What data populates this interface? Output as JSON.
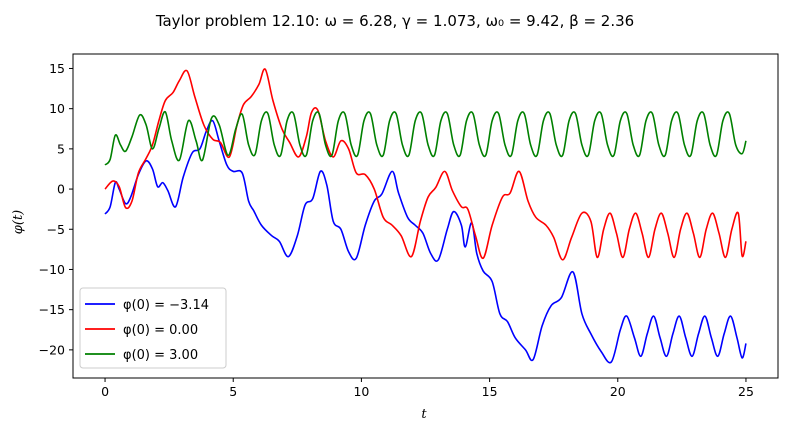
{
  "chart_data": {
    "type": "line",
    "title": "Taylor problem 12.10:   ω = 6.28,  γ = 1.073,  ω₀ = 9.42,  β = 2.36",
    "xlabel": "t",
    "ylabel": "φ(t)",
    "xlim": [
      -1.25,
      26.25
    ],
    "ylim": [
      -23.5,
      16.8
    ],
    "xticks": [
      0,
      5,
      10,
      15,
      20,
      25
    ],
    "yticks": [
      -20,
      -15,
      -10,
      -5,
      0,
      5,
      10,
      15
    ],
    "grid": false,
    "legend_position": "lower-left",
    "series": [
      {
        "name": "φ(0) = −3.14",
        "color": "#0000ff",
        "points": [
          [
            0,
            -3.1
          ],
          [
            0.2,
            -2.2
          ],
          [
            0.4,
            0.8
          ],
          [
            0.55,
            0.0
          ],
          [
            0.8,
            -1.8
          ],
          [
            1.0,
            -1.0
          ],
          [
            1.3,
            1.8
          ],
          [
            1.6,
            3.5
          ],
          [
            1.85,
            2.5
          ],
          [
            2.05,
            0.3
          ],
          [
            2.25,
            0.8
          ],
          [
            2.45,
            -0.2
          ],
          [
            2.75,
            -2.2
          ],
          [
            3.05,
            1.5
          ],
          [
            3.4,
            4.5
          ],
          [
            3.7,
            5.0
          ],
          [
            3.95,
            7.2
          ],
          [
            4.2,
            8.5
          ],
          [
            4.45,
            6.0
          ],
          [
            4.75,
            3.0
          ],
          [
            5.0,
            2.2
          ],
          [
            5.35,
            2.0
          ],
          [
            5.6,
            -1.5
          ],
          [
            5.8,
            -2.7
          ],
          [
            6.1,
            -4.5
          ],
          [
            6.5,
            -5.8
          ],
          [
            6.8,
            -6.5
          ],
          [
            7.15,
            -8.4
          ],
          [
            7.5,
            -5.8
          ],
          [
            7.8,
            -2.0
          ],
          [
            8.1,
            -1.2
          ],
          [
            8.4,
            2.2
          ],
          [
            8.65,
            0.5
          ],
          [
            8.9,
            -4.0
          ],
          [
            9.2,
            -5.0
          ],
          [
            9.5,
            -7.8
          ],
          [
            9.8,
            -8.6
          ],
          [
            10.15,
            -4.5
          ],
          [
            10.5,
            -1.5
          ],
          [
            10.8,
            -0.6
          ],
          [
            11.2,
            2.2
          ],
          [
            11.45,
            -0.5
          ],
          [
            11.8,
            -3.5
          ],
          [
            12.1,
            -4.5
          ],
          [
            12.4,
            -5.5
          ],
          [
            12.7,
            -8.0
          ],
          [
            13.0,
            -8.8
          ],
          [
            13.35,
            -5.0
          ],
          [
            13.6,
            -2.8
          ],
          [
            13.9,
            -4.5
          ],
          [
            14.05,
            -7.2
          ],
          [
            14.3,
            -4.2
          ],
          [
            14.5,
            -8.0
          ],
          [
            14.75,
            -10.2
          ],
          [
            15.1,
            -11.5
          ],
          [
            15.4,
            -15.5
          ],
          [
            15.7,
            -16.5
          ],
          [
            16.0,
            -18.5
          ],
          [
            16.4,
            -20.0
          ],
          [
            16.7,
            -21.2
          ],
          [
            17.05,
            -17.0
          ],
          [
            17.4,
            -14.5
          ],
          [
            17.8,
            -13.5
          ],
          [
            18.25,
            -10.3
          ],
          [
            18.6,
            -15.5
          ],
          [
            18.95,
            -18.0
          ],
          [
            19.35,
            -20.2
          ],
          [
            19.75,
            -21.5
          ],
          [
            20.1,
            -17.5
          ],
          [
            20.35,
            -15.8
          ],
          [
            20.65,
            -18.5
          ],
          [
            20.9,
            -20.8
          ],
          [
            21.15,
            -18.0
          ],
          [
            21.4,
            -15.8
          ],
          [
            21.65,
            -18.5
          ],
          [
            21.9,
            -20.8
          ],
          [
            22.15,
            -18.0
          ],
          [
            22.4,
            -15.8
          ],
          [
            22.65,
            -18.5
          ],
          [
            22.9,
            -20.8
          ],
          [
            23.15,
            -18.0
          ],
          [
            23.4,
            -15.8
          ],
          [
            23.65,
            -18.5
          ],
          [
            23.9,
            -20.8
          ],
          [
            24.15,
            -18.0
          ],
          [
            24.4,
            -15.8
          ],
          [
            24.65,
            -18.5
          ],
          [
            24.85,
            -21.0
          ],
          [
            25.0,
            -19.2
          ]
        ]
      },
      {
        "name": "φ(0) = 0.00",
        "color": "#ff0000",
        "points": [
          [
            0,
            0.0
          ],
          [
            0.3,
            1.0
          ],
          [
            0.55,
            0.3
          ],
          [
            0.8,
            -2.3
          ],
          [
            1.05,
            -1.5
          ],
          [
            1.3,
            2.0
          ],
          [
            1.6,
            3.8
          ],
          [
            1.85,
            5.5
          ],
          [
            2.1,
            8.5
          ],
          [
            2.35,
            11.0
          ],
          [
            2.65,
            12.0
          ],
          [
            2.9,
            13.5
          ],
          [
            3.2,
            14.7
          ],
          [
            3.5,
            11.5
          ],
          [
            3.85,
            8.0
          ],
          [
            4.2,
            6.2
          ],
          [
            4.5,
            5.8
          ],
          [
            4.85,
            4.0
          ],
          [
            5.15,
            8.0
          ],
          [
            5.4,
            10.5
          ],
          [
            5.7,
            11.5
          ],
          [
            6.0,
            13.0
          ],
          [
            6.25,
            14.9
          ],
          [
            6.55,
            11.0
          ],
          [
            6.9,
            7.5
          ],
          [
            7.2,
            5.8
          ],
          [
            7.55,
            4.0
          ],
          [
            7.85,
            6.5
          ],
          [
            8.05,
            9.5
          ],
          [
            8.3,
            9.8
          ],
          [
            8.6,
            6.0
          ],
          [
            8.9,
            4.0
          ],
          [
            9.2,
            6.0
          ],
          [
            9.5,
            5.0
          ],
          [
            9.8,
            2.0
          ],
          [
            10.15,
            1.8
          ],
          [
            10.5,
            0.0
          ],
          [
            10.85,
            -3.5
          ],
          [
            11.2,
            -4.5
          ],
          [
            11.55,
            -5.8
          ],
          [
            11.95,
            -8.4
          ],
          [
            12.3,
            -4.0
          ],
          [
            12.6,
            -1.0
          ],
          [
            12.9,
            0.2
          ],
          [
            13.25,
            2.2
          ],
          [
            13.55,
            -0.2
          ],
          [
            13.9,
            -2.2
          ],
          [
            14.15,
            -2.5
          ],
          [
            14.45,
            -5.8
          ],
          [
            14.75,
            -8.6
          ],
          [
            15.1,
            -4.5
          ],
          [
            15.5,
            -1.0
          ],
          [
            15.8,
            -0.5
          ],
          [
            16.15,
            2.2
          ],
          [
            16.5,
            -1.5
          ],
          [
            16.8,
            -3.5
          ],
          [
            17.2,
            -4.5
          ],
          [
            17.5,
            -6.0
          ],
          [
            17.85,
            -8.8
          ],
          [
            18.2,
            -6.0
          ],
          [
            18.6,
            -3.0
          ],
          [
            18.95,
            -4.0
          ],
          [
            19.2,
            -8.5
          ],
          [
            19.45,
            -5.0
          ],
          [
            19.7,
            -3.0
          ],
          [
            19.95,
            -5.5
          ],
          [
            20.2,
            -8.5
          ],
          [
            20.45,
            -5.0
          ],
          [
            20.7,
            -3.0
          ],
          [
            20.95,
            -5.5
          ],
          [
            21.2,
            -8.5
          ],
          [
            21.45,
            -5.0
          ],
          [
            21.7,
            -3.0
          ],
          [
            21.95,
            -5.5
          ],
          [
            22.2,
            -8.5
          ],
          [
            22.45,
            -5.0
          ],
          [
            22.7,
            -3.0
          ],
          [
            22.95,
            -5.5
          ],
          [
            23.2,
            -8.5
          ],
          [
            23.45,
            -5.0
          ],
          [
            23.7,
            -3.0
          ],
          [
            23.95,
            -5.5
          ],
          [
            24.2,
            -8.5
          ],
          [
            24.45,
            -5.0
          ],
          [
            24.7,
            -3.0
          ],
          [
            24.85,
            -8.3
          ],
          [
            25.0,
            -6.5
          ]
        ]
      },
      {
        "name": "φ(0) = 3.00",
        "color": "#008000",
        "points": [
          [
            0,
            3.0
          ],
          [
            0.2,
            3.7
          ],
          [
            0.4,
            6.7
          ],
          [
            0.6,
            5.5
          ],
          [
            0.8,
            4.7
          ],
          [
            1.05,
            6.5
          ],
          [
            1.35,
            9.2
          ],
          [
            1.6,
            8.0
          ],
          [
            1.85,
            5.0
          ],
          [
            2.1,
            7.5
          ],
          [
            2.35,
            9.6
          ],
          [
            2.6,
            6.0
          ],
          [
            2.9,
            3.6
          ],
          [
            3.25,
            8.5
          ],
          [
            3.55,
            6.0
          ],
          [
            3.8,
            3.6
          ],
          [
            4.15,
            8.8
          ],
          [
            4.45,
            8.0
          ],
          [
            4.8,
            4.2
          ],
          [
            5.1,
            7.5
          ],
          [
            5.35,
            9.3
          ],
          [
            5.6,
            5.5
          ],
          [
            5.85,
            4.3
          ],
          [
            6.1,
            8.5
          ],
          [
            6.35,
            9.4
          ],
          [
            6.6,
            5.5
          ],
          [
            6.85,
            4.2
          ],
          [
            7.1,
            8.5
          ],
          [
            7.35,
            9.4
          ],
          [
            7.6,
            5.5
          ],
          [
            7.85,
            4.2
          ],
          [
            8.1,
            8.5
          ],
          [
            8.35,
            9.4
          ],
          [
            8.6,
            5.5
          ],
          [
            8.85,
            4.2
          ],
          [
            9.1,
            8.5
          ],
          [
            9.35,
            9.4
          ],
          [
            9.6,
            5.5
          ],
          [
            9.85,
            4.2
          ],
          [
            10.1,
            8.5
          ],
          [
            10.35,
            9.4
          ],
          [
            10.6,
            5.5
          ],
          [
            10.85,
            4.2
          ],
          [
            11.1,
            8.5
          ],
          [
            11.35,
            9.4
          ],
          [
            11.6,
            5.5
          ],
          [
            11.85,
            4.2
          ],
          [
            12.1,
            8.5
          ],
          [
            12.35,
            9.4
          ],
          [
            12.6,
            5.5
          ],
          [
            12.85,
            4.2
          ],
          [
            13.1,
            8.5
          ],
          [
            13.35,
            9.4
          ],
          [
            13.6,
            5.5
          ],
          [
            13.85,
            4.2
          ],
          [
            14.1,
            8.5
          ],
          [
            14.35,
            9.4
          ],
          [
            14.6,
            5.5
          ],
          [
            14.85,
            4.2
          ],
          [
            15.1,
            8.5
          ],
          [
            15.35,
            9.4
          ],
          [
            15.6,
            5.5
          ],
          [
            15.85,
            4.2
          ],
          [
            16.1,
            8.5
          ],
          [
            16.35,
            9.4
          ],
          [
            16.6,
            5.5
          ],
          [
            16.85,
            4.2
          ],
          [
            17.1,
            8.5
          ],
          [
            17.35,
            9.4
          ],
          [
            17.6,
            5.5
          ],
          [
            17.85,
            4.2
          ],
          [
            18.1,
            8.5
          ],
          [
            18.35,
            9.4
          ],
          [
            18.6,
            5.5
          ],
          [
            18.85,
            4.2
          ],
          [
            19.1,
            8.5
          ],
          [
            19.35,
            9.4
          ],
          [
            19.6,
            5.5
          ],
          [
            19.85,
            4.2
          ],
          [
            20.1,
            8.5
          ],
          [
            20.35,
            9.4
          ],
          [
            20.6,
            5.5
          ],
          [
            20.85,
            4.2
          ],
          [
            21.1,
            8.5
          ],
          [
            21.35,
            9.4
          ],
          [
            21.6,
            5.5
          ],
          [
            21.85,
            4.2
          ],
          [
            22.1,
            8.5
          ],
          [
            22.35,
            9.4
          ],
          [
            22.6,
            5.5
          ],
          [
            22.85,
            4.2
          ],
          [
            23.1,
            8.5
          ],
          [
            23.35,
            9.4
          ],
          [
            23.6,
            5.5
          ],
          [
            23.85,
            4.2
          ],
          [
            24.1,
            8.5
          ],
          [
            24.35,
            9.4
          ],
          [
            24.6,
            5.5
          ],
          [
            24.85,
            4.4
          ],
          [
            25.0,
            6.0
          ]
        ]
      }
    ]
  }
}
